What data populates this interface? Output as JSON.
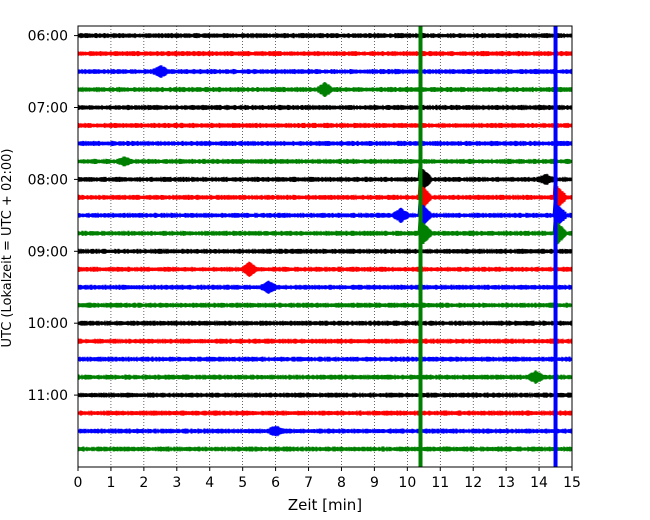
{
  "chart_data": {
    "type": "line",
    "title": "",
    "xlabel": "Zeit  [min]",
    "ylabel": "UTC (Lokalzeit = UTC + 02:00)",
    "xlim": [
      0,
      15
    ],
    "ylim": [
      "05:52",
      "12:00"
    ],
    "x_ticks": [
      "0",
      "1",
      "2",
      "3",
      "4",
      "5",
      "6",
      "7",
      "8",
      "9",
      "10",
      "11",
      "12",
      "13",
      "14",
      "15"
    ],
    "y_ticks": [
      "06:00",
      "07:00",
      "08:00",
      "09:00",
      "10:00",
      "11:00"
    ],
    "grid_x": true,
    "trace_interval_min": 15,
    "trace_colors": [
      "#000000",
      "#ff0000",
      "#0000ff",
      "#008000"
    ],
    "traces": [
      "06:00",
      "06:15",
      "06:30",
      "06:45",
      "07:00",
      "07:15",
      "07:30",
      "07:45",
      "08:00",
      "08:15",
      "08:30",
      "08:45",
      "09:00",
      "09:15",
      "09:30",
      "09:45",
      "10:00",
      "10:15",
      "10:30",
      "10:45",
      "11:00",
      "11:15",
      "11:30",
      "11:45"
    ],
    "events": [
      {
        "trace": "06:30",
        "x": 2.5,
        "amp": 0.25
      },
      {
        "trace": "06:45",
        "x": 7.5,
        "amp": 0.3
      },
      {
        "trace": "07:45",
        "x": 1.4,
        "amp": 0.15
      },
      {
        "trace": "08:00",
        "x": 14.2,
        "amp": 0.2
      },
      {
        "trace": "08:30",
        "x": 9.8,
        "amp": 0.3
      },
      {
        "trace": "09:15",
        "x": 5.2,
        "amp": 0.3
      },
      {
        "trace": "09:30",
        "x": 5.8,
        "amp": 0.25
      },
      {
        "trace": "10:45",
        "x": 13.9,
        "amp": 0.25
      },
      {
        "trace": "11:30",
        "x": 6.0,
        "amp": 0.2
      }
    ],
    "vertical_lines": [
      {
        "x": 10.4,
        "color": "#008000",
        "trace_start": "08:00",
        "trace_end": "08:45",
        "amp": 1.6
      },
      {
        "x": 14.5,
        "color": "#0000ff",
        "trace_start": "08:15",
        "trace_end": "08:45",
        "amp": 1.5
      }
    ]
  }
}
